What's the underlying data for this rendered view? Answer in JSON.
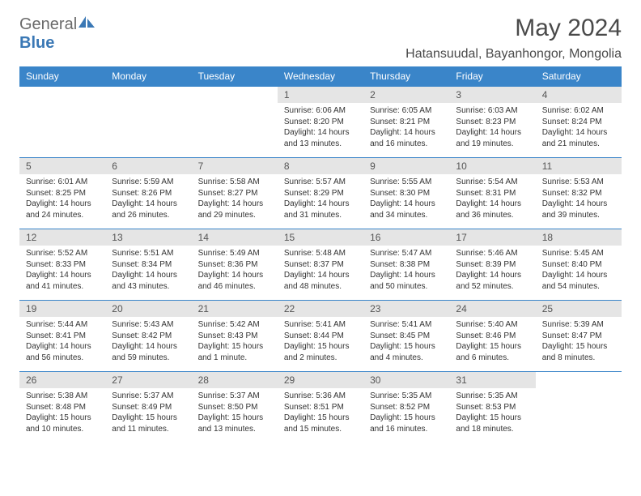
{
  "logo": {
    "text1": "General",
    "text2": "Blue"
  },
  "title": "May 2024",
  "location": "Hatansuudal, Bayanhongor, Mongolia",
  "day_headers": [
    "Sunday",
    "Monday",
    "Tuesday",
    "Wednesday",
    "Thursday",
    "Friday",
    "Saturday"
  ],
  "colors": {
    "header_bg": "#3a85c9",
    "header_fg": "#ffffff",
    "daynum_bg": "#e5e5e5",
    "border": "#3a85c9",
    "logo_gray": "#6a6a6a",
    "logo_blue": "#3a78b5"
  },
  "weeks": [
    [
      null,
      null,
      null,
      {
        "n": "1",
        "sunrise": "6:06 AM",
        "sunset": "8:20 PM",
        "daylight": "14 hours and 13 minutes."
      },
      {
        "n": "2",
        "sunrise": "6:05 AM",
        "sunset": "8:21 PM",
        "daylight": "14 hours and 16 minutes."
      },
      {
        "n": "3",
        "sunrise": "6:03 AM",
        "sunset": "8:23 PM",
        "daylight": "14 hours and 19 minutes."
      },
      {
        "n": "4",
        "sunrise": "6:02 AM",
        "sunset": "8:24 PM",
        "daylight": "14 hours and 21 minutes."
      }
    ],
    [
      {
        "n": "5",
        "sunrise": "6:01 AM",
        "sunset": "8:25 PM",
        "daylight": "14 hours and 24 minutes."
      },
      {
        "n": "6",
        "sunrise": "5:59 AM",
        "sunset": "8:26 PM",
        "daylight": "14 hours and 26 minutes."
      },
      {
        "n": "7",
        "sunrise": "5:58 AM",
        "sunset": "8:27 PM",
        "daylight": "14 hours and 29 minutes."
      },
      {
        "n": "8",
        "sunrise": "5:57 AM",
        "sunset": "8:29 PM",
        "daylight": "14 hours and 31 minutes."
      },
      {
        "n": "9",
        "sunrise": "5:55 AM",
        "sunset": "8:30 PM",
        "daylight": "14 hours and 34 minutes."
      },
      {
        "n": "10",
        "sunrise": "5:54 AM",
        "sunset": "8:31 PM",
        "daylight": "14 hours and 36 minutes."
      },
      {
        "n": "11",
        "sunrise": "5:53 AM",
        "sunset": "8:32 PM",
        "daylight": "14 hours and 39 minutes."
      }
    ],
    [
      {
        "n": "12",
        "sunrise": "5:52 AM",
        "sunset": "8:33 PM",
        "daylight": "14 hours and 41 minutes."
      },
      {
        "n": "13",
        "sunrise": "5:51 AM",
        "sunset": "8:34 PM",
        "daylight": "14 hours and 43 minutes."
      },
      {
        "n": "14",
        "sunrise": "5:49 AM",
        "sunset": "8:36 PM",
        "daylight": "14 hours and 46 minutes."
      },
      {
        "n": "15",
        "sunrise": "5:48 AM",
        "sunset": "8:37 PM",
        "daylight": "14 hours and 48 minutes."
      },
      {
        "n": "16",
        "sunrise": "5:47 AM",
        "sunset": "8:38 PM",
        "daylight": "14 hours and 50 minutes."
      },
      {
        "n": "17",
        "sunrise": "5:46 AM",
        "sunset": "8:39 PM",
        "daylight": "14 hours and 52 minutes."
      },
      {
        "n": "18",
        "sunrise": "5:45 AM",
        "sunset": "8:40 PM",
        "daylight": "14 hours and 54 minutes."
      }
    ],
    [
      {
        "n": "19",
        "sunrise": "5:44 AM",
        "sunset": "8:41 PM",
        "daylight": "14 hours and 56 minutes."
      },
      {
        "n": "20",
        "sunrise": "5:43 AM",
        "sunset": "8:42 PM",
        "daylight": "14 hours and 59 minutes."
      },
      {
        "n": "21",
        "sunrise": "5:42 AM",
        "sunset": "8:43 PM",
        "daylight": "15 hours and 1 minute."
      },
      {
        "n": "22",
        "sunrise": "5:41 AM",
        "sunset": "8:44 PM",
        "daylight": "15 hours and 2 minutes."
      },
      {
        "n": "23",
        "sunrise": "5:41 AM",
        "sunset": "8:45 PM",
        "daylight": "15 hours and 4 minutes."
      },
      {
        "n": "24",
        "sunrise": "5:40 AM",
        "sunset": "8:46 PM",
        "daylight": "15 hours and 6 minutes."
      },
      {
        "n": "25",
        "sunrise": "5:39 AM",
        "sunset": "8:47 PM",
        "daylight": "15 hours and 8 minutes."
      }
    ],
    [
      {
        "n": "26",
        "sunrise": "5:38 AM",
        "sunset": "8:48 PM",
        "daylight": "15 hours and 10 minutes."
      },
      {
        "n": "27",
        "sunrise": "5:37 AM",
        "sunset": "8:49 PM",
        "daylight": "15 hours and 11 minutes."
      },
      {
        "n": "28",
        "sunrise": "5:37 AM",
        "sunset": "8:50 PM",
        "daylight": "15 hours and 13 minutes."
      },
      {
        "n": "29",
        "sunrise": "5:36 AM",
        "sunset": "8:51 PM",
        "daylight": "15 hours and 15 minutes."
      },
      {
        "n": "30",
        "sunrise": "5:35 AM",
        "sunset": "8:52 PM",
        "daylight": "15 hours and 16 minutes."
      },
      {
        "n": "31",
        "sunrise": "5:35 AM",
        "sunset": "8:53 PM",
        "daylight": "15 hours and 18 minutes."
      },
      null
    ]
  ],
  "labels": {
    "sunrise": "Sunrise:",
    "sunset": "Sunset:",
    "daylight": "Daylight:"
  }
}
